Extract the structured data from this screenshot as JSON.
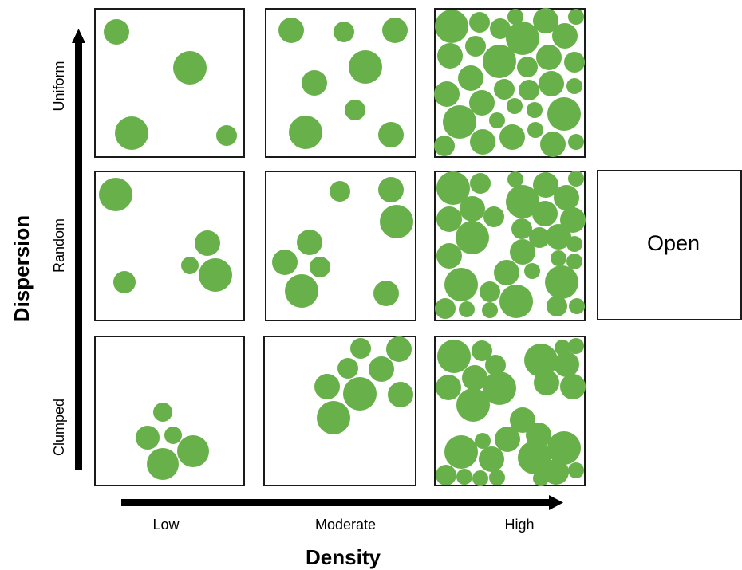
{
  "axes": {
    "x_title": "Density",
    "y_title": "Dispersion",
    "x_labels": [
      "Low",
      "Moderate",
      "High"
    ],
    "y_labels": [
      "Uniform",
      "Random",
      "Clumped"
    ]
  },
  "extra_panel": {
    "label": "Open"
  },
  "colors": {
    "circle": "#68b04a",
    "border": "#1a1a1a",
    "arrow": "#000000"
  },
  "panels": [
    {
      "row": "uniform",
      "density": "low"
    },
    {
      "row": "uniform",
      "density": "moderate"
    },
    {
      "row": "uniform",
      "density": "high"
    },
    {
      "row": "random",
      "density": "low"
    },
    {
      "row": "random",
      "density": "moderate"
    },
    {
      "row": "random",
      "density": "high"
    },
    {
      "row": "clumped",
      "density": "low"
    },
    {
      "row": "clumped",
      "density": "moderate"
    },
    {
      "row": "clumped",
      "density": "high"
    }
  ]
}
